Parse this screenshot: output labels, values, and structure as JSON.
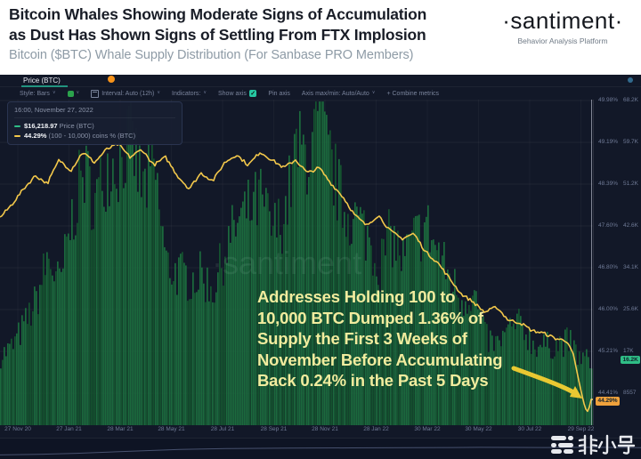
{
  "header": {
    "title_line1": "Bitcoin Whales Showing Moderate Signs of Accumulation",
    "title_line2": "as Dust Has Shown Signs of Settling From FTX Implosion",
    "subtitle": "Bitcoin ($BTC) Whale Supply Distribution (For Sanbase PRO Members)",
    "brand": "·santiment·",
    "brand_tagline": "Behavior Analysis Platform"
  },
  "toolbar": {
    "tab_label": "Price (BTC)",
    "style_label": "Style: Bars",
    "interval_label": "Interval: Auto (12h)",
    "indicators_label": "Indicators:",
    "show_axis_label": "Show axis",
    "checkmark": "✓",
    "pin_axis_label": "Pin axis",
    "axis_maxmin_label": "Axis max/min: Auto/Auto",
    "combine_label": "+ Combine metrics"
  },
  "tooltip": {
    "datetime": "16:00, November 27, 2022",
    "price_value": "$16,218.97",
    "price_label": "Price (BTC)",
    "supply_value": "44.29%",
    "supply_label": "(100 - 10,000) coins % (BTC)"
  },
  "annotation": {
    "lines": [
      "Addresses Holding 100 to",
      "10,000 BTC Dumped 1.36% of",
      "Supply the First 3 Weeks of",
      "November Before Accumulating",
      "Back 0.24% in the Past 5 Days"
    ]
  },
  "axes": {
    "pct_ticks": [
      "49.98%",
      "49.19%",
      "48.39%",
      "47.60%",
      "46.80%",
      "46.00%",
      "45.21%",
      "44.41%"
    ],
    "price_ticks": [
      "68.2K",
      "59.7K",
      "51.2K",
      "42.6K",
      "34.1K",
      "25.6K",
      "17K",
      "8557"
    ],
    "price_badge": "16.2K",
    "pct_badge": "44.29%",
    "dates": [
      "27 Nov 20",
      "27 Jan 21",
      "28 Mar 21",
      "28 May 21",
      "28 Jul 21",
      "28 Sep 21",
      "28 Nov 21",
      "28 Jan 22",
      "30 Mar 22",
      "30 May 22",
      "30 Jul 22",
      "29 Sep 22"
    ]
  },
  "watermark_chart": "·santiment",
  "watermark_site": "非小号",
  "colors": {
    "chart_bg": "#121828",
    "bars_green": "#1b6a3d",
    "bars_green_dark": "#14532f",
    "line_yellow": "#f3c84b",
    "badge_green": "#2fbd86",
    "badge_orange": "#f0a23c",
    "teal_accent": "#26c6a2",
    "annotation_yellow": "#f1ec9e"
  },
  "chart_data": {
    "type": "bar+line",
    "title": "Bitcoin ($BTC) Whale Supply Distribution",
    "x_range": [
      "2020-11-27",
      "2022-11-27"
    ],
    "right_axis_pct_range": [
      44.41,
      49.98
    ],
    "right_axis_price_range_usd": [
      8557,
      68200
    ],
    "grid": true,
    "legend_position": "tooltip-top-left",
    "series": [
      {
        "name": "Price (BTC)",
        "type": "bar",
        "unit": "USD thousands",
        "color": "#1b6a3d",
        "current_value": 16218.97,
        "points": [
          [
            0,
            17.2
          ],
          [
            0.02,
            19.2
          ],
          [
            0.04,
            23.8
          ],
          [
            0.06,
            29
          ],
          [
            0.08,
            38.5
          ],
          [
            0.1,
            32.2
          ],
          [
            0.12,
            46.5
          ],
          [
            0.14,
            57.5
          ],
          [
            0.16,
            50.5
          ],
          [
            0.18,
            58.5
          ],
          [
            0.2,
            59
          ],
          [
            0.22,
            64.5
          ],
          [
            0.24,
            53
          ],
          [
            0.26,
            57.5
          ],
          [
            0.28,
            37
          ],
          [
            0.3,
            35
          ],
          [
            0.32,
            34
          ],
          [
            0.34,
            34.5
          ],
          [
            0.36,
            31.5
          ],
          [
            0.38,
            40
          ],
          [
            0.4,
            46
          ],
          [
            0.42,
            48.5
          ],
          [
            0.44,
            51
          ],
          [
            0.46,
            44
          ],
          [
            0.48,
            47.5
          ],
          [
            0.5,
            61.5
          ],
          [
            0.52,
            61
          ],
          [
            0.54,
            67.5
          ],
          [
            0.56,
            58
          ],
          [
            0.58,
            49
          ],
          [
            0.6,
            47
          ],
          [
            0.62,
            43.5
          ],
          [
            0.64,
            36.5
          ],
          [
            0.66,
            43.5
          ],
          [
            0.68,
            38
          ],
          [
            0.7,
            42.5
          ],
          [
            0.72,
            45.5
          ],
          [
            0.74,
            39.5
          ],
          [
            0.76,
            34
          ],
          [
            0.78,
            29.5
          ],
          [
            0.8,
            31
          ],
          [
            0.82,
            21
          ],
          [
            0.84,
            19.5
          ],
          [
            0.86,
            22.8
          ],
          [
            0.88,
            24
          ],
          [
            0.9,
            19.8
          ],
          [
            0.92,
            19.4
          ],
          [
            0.94,
            19.5
          ],
          [
            0.96,
            20.5
          ],
          [
            0.98,
            16.6
          ],
          [
            1,
            16.2
          ]
        ]
      },
      {
        "name": "(100 - 10,000) coins % (BTC)",
        "type": "line",
        "unit": "%",
        "color": "#f3c84b",
        "current_value": 44.29,
        "points": [
          [
            0,
            47.75
          ],
          [
            0.02,
            48.0
          ],
          [
            0.04,
            48.3
          ],
          [
            0.06,
            48.55
          ],
          [
            0.08,
            48.4
          ],
          [
            0.1,
            48.85
          ],
          [
            0.12,
            48.65
          ],
          [
            0.14,
            49.0
          ],
          [
            0.16,
            48.8
          ],
          [
            0.18,
            49.05
          ],
          [
            0.2,
            49.15
          ],
          [
            0.22,
            48.9
          ],
          [
            0.24,
            49.05
          ],
          [
            0.26,
            48.75
          ],
          [
            0.28,
            48.9
          ],
          [
            0.3,
            48.55
          ],
          [
            0.32,
            48.3
          ],
          [
            0.34,
            48.6
          ],
          [
            0.36,
            48.45
          ],
          [
            0.38,
            48.8
          ],
          [
            0.4,
            48.95
          ],
          [
            0.42,
            48.75
          ],
          [
            0.44,
            49.0
          ],
          [
            0.46,
            48.85
          ],
          [
            0.48,
            48.7
          ],
          [
            0.5,
            48.85
          ],
          [
            0.52,
            48.6
          ],
          [
            0.54,
            48.7
          ],
          [
            0.56,
            48.4
          ],
          [
            0.58,
            48.15
          ],
          [
            0.6,
            47.8
          ],
          [
            0.62,
            47.6
          ],
          [
            0.64,
            47.8
          ],
          [
            0.66,
            47.5
          ],
          [
            0.68,
            47.35
          ],
          [
            0.7,
            47.45
          ],
          [
            0.72,
            47.1
          ],
          [
            0.74,
            46.9
          ],
          [
            0.76,
            46.6
          ],
          [
            0.78,
            46.3
          ],
          [
            0.8,
            46.15
          ],
          [
            0.82,
            45.95
          ],
          [
            0.84,
            46.05
          ],
          [
            0.86,
            45.8
          ],
          [
            0.88,
            45.75
          ],
          [
            0.9,
            45.6
          ],
          [
            0.92,
            45.55
          ],
          [
            0.94,
            45.45
          ],
          [
            0.96,
            45.4
          ],
          [
            0.97,
            45.15
          ],
          [
            0.98,
            44.6
          ],
          [
            0.985,
            44.35
          ],
          [
            0.99,
            44.12
          ],
          [
            0.995,
            44.05
          ],
          [
            1,
            44.29
          ]
        ]
      }
    ],
    "minimap": [
      [
        0,
        0.8
      ],
      [
        0.06,
        0.76
      ],
      [
        0.12,
        0.7
      ],
      [
        0.2,
        0.58
      ],
      [
        0.28,
        0.46
      ],
      [
        0.36,
        0.4
      ],
      [
        0.45,
        0.38
      ],
      [
        0.55,
        0.36
      ],
      [
        0.65,
        0.35
      ],
      [
        0.75,
        0.33
      ],
      [
        0.85,
        0.34
      ],
      [
        0.93,
        0.33
      ],
      [
        1,
        0.35
      ]
    ]
  }
}
